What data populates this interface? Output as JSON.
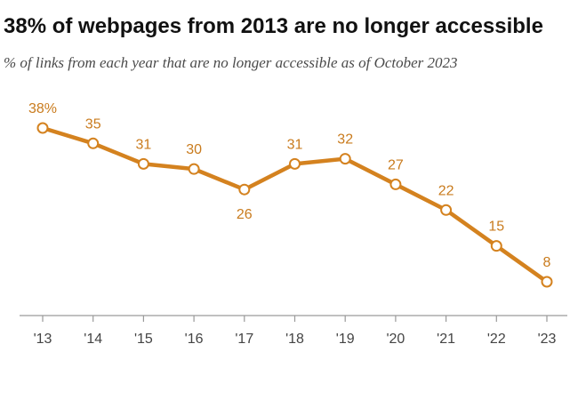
{
  "title": "38% of webpages from 2013 are no longer accessible",
  "subtitle": "% of links from each year that are no longer accessible as of October 2023",
  "colors": {
    "line": "#d4821f",
    "label": "#c97b1d",
    "axis": "#9a9a9a",
    "point_fill": "#ffffff"
  },
  "chart_data": {
    "type": "line",
    "categories": [
      "'13",
      "'14",
      "'15",
      "'16",
      "'17",
      "'18",
      "'19",
      "'20",
      "'21",
      "'22",
      "'23"
    ],
    "series": [
      {
        "values": [
          38,
          35,
          31,
          30,
          26,
          31,
          32,
          27,
          22,
          15,
          8
        ],
        "labels": [
          "38%",
          "35",
          "31",
          "30",
          "26",
          "31",
          "32",
          "27",
          "22",
          "15",
          "8"
        ]
      }
    ],
    "ylim": [
      0,
      40
    ],
    "grid": false,
    "legend": "none"
  }
}
